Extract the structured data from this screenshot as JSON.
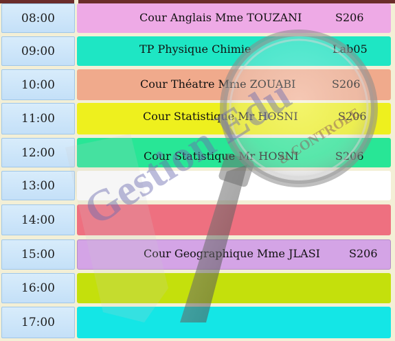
{
  "schedule": {
    "rows": [
      {
        "time": "08:00",
        "course": "Cour Anglais Mme TOUZANI",
        "room": "S206",
        "color": "#eeaae6"
      },
      {
        "time": "09:00",
        "course": "TP Physique Chimie",
        "room": "Lab05",
        "color": "#1ee6c4"
      },
      {
        "time": "10:00",
        "course": "Cour Théatre Mme ZOUABI",
        "room": "S206",
        "color": "#f0aa8c"
      },
      {
        "time": "11:00",
        "course": "Cour Statistique Mr HOSNI",
        "room": "S206",
        "color": "#eef01e"
      },
      {
        "time": "12:00",
        "course": "Cour Statistique Mr HOSNI",
        "room": "S206",
        "color": "#28e696"
      },
      {
        "time": "13:00",
        "course": "",
        "room": "",
        "color": "#ffffff"
      },
      {
        "time": "14:00",
        "course": "",
        "room": "",
        "color": "#ee7080"
      },
      {
        "time": "15:00",
        "course": "Cour Geographique Mme JLASI",
        "room": "S206",
        "color": "#d4a4e6"
      },
      {
        "time": "16:00",
        "course": "",
        "room": "",
        "color": "#c4e00c"
      },
      {
        "time": "17:00",
        "course": "",
        "room": "",
        "color": "#14e6e6"
      }
    ]
  },
  "watermark": {
    "brand": "Gestion Edu",
    "tagline": "& CONTROLE",
    "icon": "magnifier-icon"
  }
}
